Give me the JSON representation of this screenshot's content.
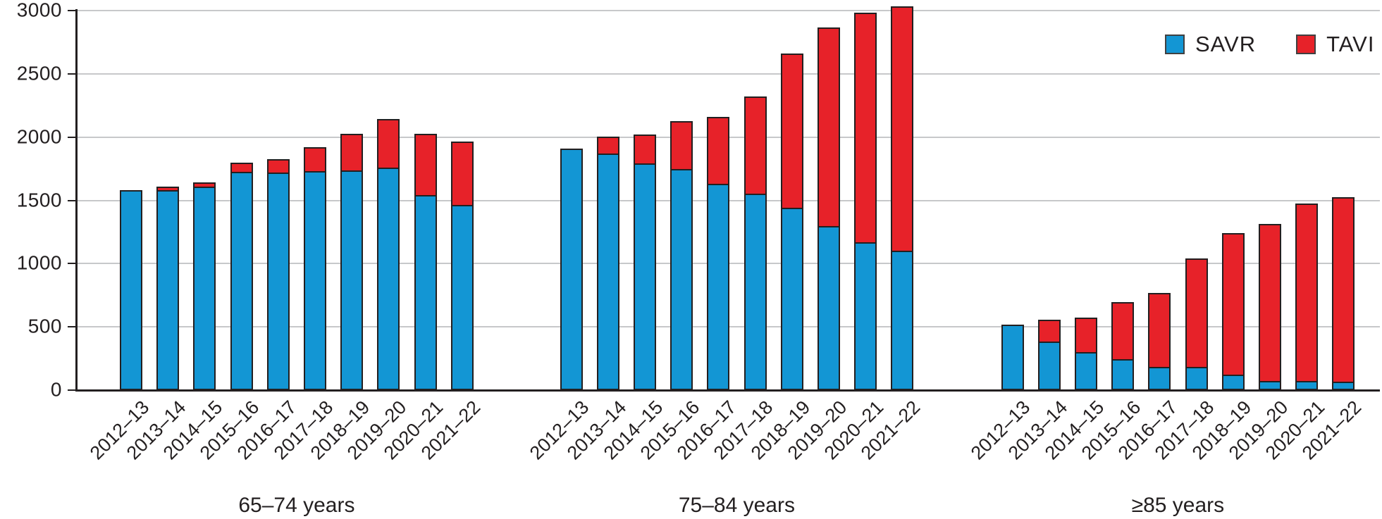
{
  "chart_data": {
    "type": "bar",
    "stacked": true,
    "title": "",
    "xlabel": "",
    "ylabel": "",
    "ylim": [
      0,
      3000
    ],
    "yticks": [
      0,
      500,
      1000,
      1500,
      2000,
      2500,
      3000
    ],
    "grid": "horizontal",
    "legend_position": "top-right",
    "legend": [
      {
        "name": "SAVR",
        "color": "#1396d4"
      },
      {
        "name": "TAVI",
        "color": "#e72229"
      }
    ],
    "categories": [
      "2012–13",
      "2013–14",
      "2014–15",
      "2015–16",
      "2016–17",
      "2017–18",
      "2018–19",
      "2019–20",
      "2020–21",
      "2021–22"
    ],
    "groups": [
      {
        "label": "65–74 years",
        "series": [
          {
            "name": "SAVR",
            "values": [
              1580,
              1580,
              1610,
              1725,
              1720,
              1730,
              1735,
              1760,
              1540,
              1465
            ]
          },
          {
            "name": "TAVI",
            "values": [
              0,
              30,
              35,
              70,
              105,
              190,
              290,
              385,
              485,
              500
            ]
          }
        ]
      },
      {
        "label": "75–84 years",
        "series": [
          {
            "name": "SAVR",
            "values": [
              1910,
              1870,
              1790,
              1750,
              1630,
              1555,
              1440,
              1295,
              1170,
              1100
            ]
          },
          {
            "name": "TAVI",
            "values": [
              0,
              135,
              230,
              380,
              530,
              770,
              1220,
              1570,
              1815,
              1930
            ]
          }
        ]
      },
      {
        "label": "≥85 years",
        "series": [
          {
            "name": "SAVR",
            "values": [
              515,
              385,
              300,
              245,
              185,
              185,
              125,
              75,
              75,
              65
            ]
          },
          {
            "name": "TAVI",
            "values": [
              0,
              175,
              270,
              450,
              585,
              855,
              1120,
              1240,
              1400,
              1460
            ]
          }
        ]
      }
    ]
  }
}
